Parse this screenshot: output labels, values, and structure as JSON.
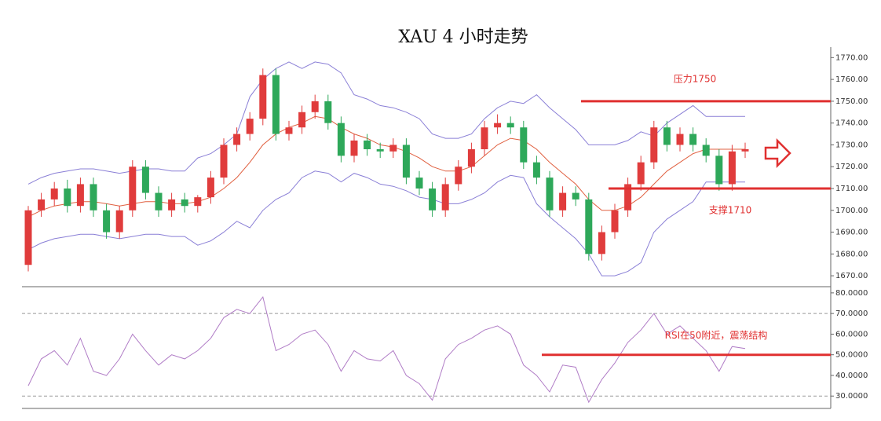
{
  "chart_data": [
    {
      "type": "candlestick",
      "title": "XAU 4 小时走势",
      "open": [
        1675,
        1700,
        1705,
        1710,
        1702,
        1712,
        1700,
        1690,
        1700,
        1720,
        1708,
        1700,
        1705,
        1702,
        1706,
        1715,
        1730,
        1735,
        1742,
        1762,
        1735,
        1738,
        1745,
        1750,
        1740,
        1725,
        1732,
        1728,
        1727,
        1730,
        1715,
        1710,
        1700,
        1712,
        1720,
        1728,
        1738,
        1740,
        1738,
        1722,
        1715,
        1700,
        1708,
        1705,
        1680,
        1690,
        1700,
        1712,
        1722,
        1738,
        1730,
        1735,
        1730,
        1725,
        1712,
        1727
      ],
      "high": [
        1702,
        1708,
        1713,
        1714,
        1715,
        1715,
        1703,
        1702,
        1723,
        1723,
        1711,
        1708,
        1708,
        1707,
        1718,
        1733,
        1738,
        1745,
        1765,
        1765,
        1741,
        1748,
        1753,
        1753,
        1743,
        1735,
        1735,
        1731,
        1733,
        1733,
        1718,
        1713,
        1715,
        1723,
        1731,
        1741,
        1744,
        1743,
        1741,
        1725,
        1718,
        1711,
        1711,
        1708,
        1693,
        1703,
        1715,
        1725,
        1741,
        1741,
        1738,
        1738,
        1733,
        1728,
        1730,
        1731
      ],
      "low": [
        1672,
        1697,
        1702,
        1699,
        1699,
        1697,
        1687,
        1687,
        1697,
        1705,
        1697,
        1697,
        1699,
        1699,
        1703,
        1712,
        1727,
        1732,
        1739,
        1732,
        1732,
        1735,
        1742,
        1737,
        1722,
        1722,
        1725,
        1724,
        1724,
        1712,
        1707,
        1697,
        1697,
        1709,
        1717,
        1725,
        1735,
        1735,
        1719,
        1712,
        1697,
        1697,
        1702,
        1677,
        1677,
        1687,
        1697,
        1709,
        1719,
        1727,
        1727,
        1727,
        1722,
        1709,
        1709,
        1724
      ],
      "close": [
        1700,
        1705,
        1710,
        1702,
        1712,
        1700,
        1690,
        1700,
        1720,
        1708,
        1700,
        1705,
        1702,
        1706,
        1715,
        1730,
        1735,
        1742,
        1762,
        1735,
        1738,
        1745,
        1750,
        1740,
        1725,
        1732,
        1728,
        1727,
        1730,
        1715,
        1710,
        1700,
        1712,
        1720,
        1728,
        1738,
        1740,
        1738,
        1722,
        1715,
        1700,
        1708,
        1705,
        1680,
        1690,
        1700,
        1712,
        1722,
        1738,
        1730,
        1735,
        1730,
        1725,
        1712,
        1727,
        1728
      ],
      "up_color": "#e03c3c",
      "down_color": "#2ea85a",
      "series": [
        {
          "name": "upper",
          "color": "#8a7fd6",
          "values": [
            1712,
            1715,
            1717,
            1718,
            1719,
            1719,
            1718,
            1717,
            1718,
            1719,
            1719,
            1718,
            1718,
            1724,
            1726,
            1730,
            1735,
            1752,
            1760,
            1765,
            1768,
            1765,
            1768,
            1767,
            1763,
            1753,
            1751,
            1748,
            1747,
            1745,
            1742,
            1735,
            1733,
            1733,
            1735,
            1742,
            1747,
            1750,
            1749,
            1753,
            1747,
            1742,
            1737,
            1730,
            1730,
            1730,
            1732,
            1736,
            1734,
            1740,
            1744,
            1748,
            1743,
            1743,
            1743,
            1743
          ]
        },
        {
          "name": "middle",
          "color": "#e06040",
          "values": [
            1697,
            1700,
            1702,
            1703,
            1704,
            1704,
            1703,
            1702,
            1703,
            1704,
            1704,
            1703,
            1703,
            1704,
            1706,
            1710,
            1715,
            1722,
            1730,
            1735,
            1738,
            1740,
            1743,
            1742,
            1738,
            1735,
            1733,
            1730,
            1729,
            1727,
            1724,
            1720,
            1718,
            1718,
            1720,
            1725,
            1730,
            1733,
            1732,
            1728,
            1722,
            1717,
            1712,
            1705,
            1700,
            1700,
            1702,
            1706,
            1712,
            1718,
            1722,
            1726,
            1728,
            1728,
            1728,
            1728
          ]
        },
        {
          "name": "lower",
          "color": "#8a7fd6",
          "values": [
            1682,
            1685,
            1687,
            1688,
            1689,
            1689,
            1688,
            1687,
            1688,
            1689,
            1689,
            1688,
            1688,
            1684,
            1686,
            1690,
            1695,
            1692,
            1700,
            1705,
            1708,
            1715,
            1718,
            1717,
            1713,
            1717,
            1715,
            1712,
            1711,
            1709,
            1706,
            1705,
            1703,
            1703,
            1705,
            1708,
            1713,
            1716,
            1715,
            1703,
            1697,
            1692,
            1687,
            1680,
            1670,
            1670,
            1672,
            1676,
            1690,
            1696,
            1700,
            1704,
            1713,
            1713,
            1713,
            1713
          ]
        }
      ],
      "ylim": [
        1665,
        1773
      ],
      "yticks": [
        {
          "value": 1670,
          "label": "1670.00"
        },
        {
          "value": 1680,
          "label": "1680.00"
        },
        {
          "value": 1690,
          "label": "1690.00"
        },
        {
          "value": 1700,
          "label": "1700.00"
        },
        {
          "value": 1710,
          "label": "1710.00"
        },
        {
          "value": 1720,
          "label": "1720.00"
        },
        {
          "value": 1730,
          "label": "1730.00"
        },
        {
          "value": 1740,
          "label": "1740.00"
        },
        {
          "value": 1750,
          "label": "1750.00"
        },
        {
          "value": 1760,
          "label": "1760.00"
        },
        {
          "value": 1770,
          "label": "1770.00"
        }
      ],
      "annotations": [
        {
          "label": "压力1750",
          "value": 1750
        },
        {
          "label": "支撑1710",
          "value": 1710
        }
      ]
    },
    {
      "type": "line",
      "series": [
        {
          "name": "RSI",
          "color": "#b07cc6",
          "values": [
            35,
            48,
            52,
            45,
            58,
            42,
            40,
            48,
            60,
            52,
            45,
            50,
            48,
            52,
            58,
            68,
            72,
            70,
            78,
            52,
            55,
            60,
            62,
            55,
            42,
            52,
            48,
            47,
            52,
            40,
            36,
            28,
            48,
            55,
            58,
            62,
            64,
            60,
            45,
            40,
            32,
            45,
            44,
            27,
            38,
            46,
            56,
            62,
            70,
            60,
            64,
            58,
            52,
            42,
            54,
            53
          ]
        }
      ],
      "ylim": [
        24,
        83
      ],
      "yticks": [
        {
          "value": 30,
          "label": "30.0000"
        },
        {
          "value": 40,
          "label": "40.0000"
        },
        {
          "value": 50,
          "label": "50.0000"
        },
        {
          "value": 60,
          "label": "60.0000"
        },
        {
          "value": 70,
          "label": "70.0000"
        },
        {
          "value": 80,
          "label": "80.0000"
        }
      ],
      "reference_lines": [
        70,
        30
      ],
      "annotations": [
        {
          "label": "RSI在50附近，震荡结构",
          "value": 50
        }
      ]
    }
  ]
}
